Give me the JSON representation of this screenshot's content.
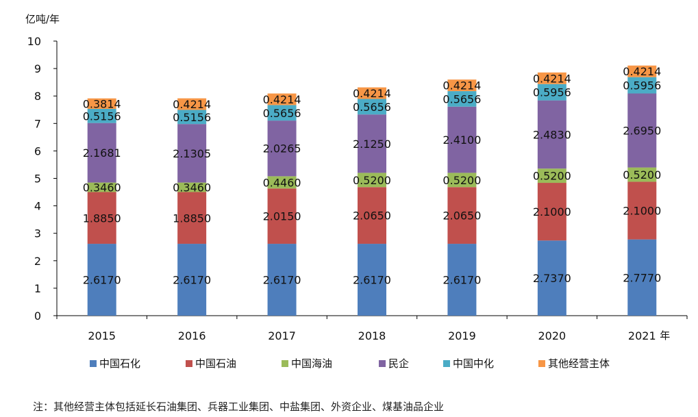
{
  "chart_data": {
    "type": "bar",
    "stacked": true,
    "ylabel": "亿吨/年",
    "xlabel": "年",
    "ylim": [
      0,
      10
    ],
    "yticks": [
      "0",
      "1",
      "2",
      "3",
      "4",
      "5",
      "6",
      "7",
      "8",
      "9",
      "10"
    ],
    "grid": false,
    "legend_position": "bottom",
    "categories": [
      "2015",
      "2016",
      "2017",
      "2018",
      "2019",
      "2020",
      "2021"
    ],
    "series": [
      {
        "name": "中国石化",
        "color": "#4E7EBC",
        "values": [
          2.617,
          2.617,
          2.617,
          2.617,
          2.617,
          2.737,
          2.777
        ],
        "labels": [
          "2.6170",
          "2.6170",
          "2.6170",
          "2.6170",
          "2.6170",
          "2.7370",
          "2.7770"
        ]
      },
      {
        "name": "中国石油",
        "color": "#C0504D",
        "values": [
          1.885,
          1.885,
          2.015,
          2.065,
          2.065,
          2.1,
          2.1
        ],
        "labels": [
          "1.8850",
          "1.8850",
          "2.0150",
          "2.0650",
          "2.0650",
          "2.1000",
          "2.1000"
        ]
      },
      {
        "name": "中国海油",
        "color": "#9BBB59",
        "values": [
          0.346,
          0.346,
          0.446,
          0.52,
          0.52,
          0.52,
          0.52
        ],
        "labels": [
          "0.3460",
          "0.3460",
          "0.4460",
          "0.5200",
          "0.5200",
          "0.5200",
          "0.5200"
        ]
      },
      {
        "name": "民企",
        "color": "#8064A2",
        "values": [
          2.1681,
          2.1305,
          2.0265,
          2.125,
          2.41,
          2.483,
          2.695
        ],
        "labels": [
          "2.1681",
          "2.1305",
          "2.0265",
          "2.1250",
          "2.4100",
          "2.4830",
          "2.6950"
        ]
      },
      {
        "name": "中国中化",
        "color": "#4BACC6",
        "values": [
          0.5156,
          0.5156,
          0.5656,
          0.5656,
          0.5656,
          0.5956,
          0.5956
        ],
        "labels": [
          "0.5156",
          "0.5156",
          "0.5656",
          "0.5656",
          "0.5656",
          "0.5956",
          "0.5956"
        ]
      },
      {
        "name": "其他经营主体",
        "color": "#F79646",
        "values": [
          0.3814,
          0.4214,
          0.4214,
          0.4214,
          0.4214,
          0.4214,
          0.4214
        ],
        "labels": [
          "0.3814",
          "0.4214",
          "0.4214",
          "0.4214",
          "0.4214",
          "0.4214",
          "0.4214"
        ]
      }
    ]
  },
  "note": "注：其他经营主体包括延长石油集团、兵器工业集团、中盐集团、外资企业、煤基油品企业"
}
